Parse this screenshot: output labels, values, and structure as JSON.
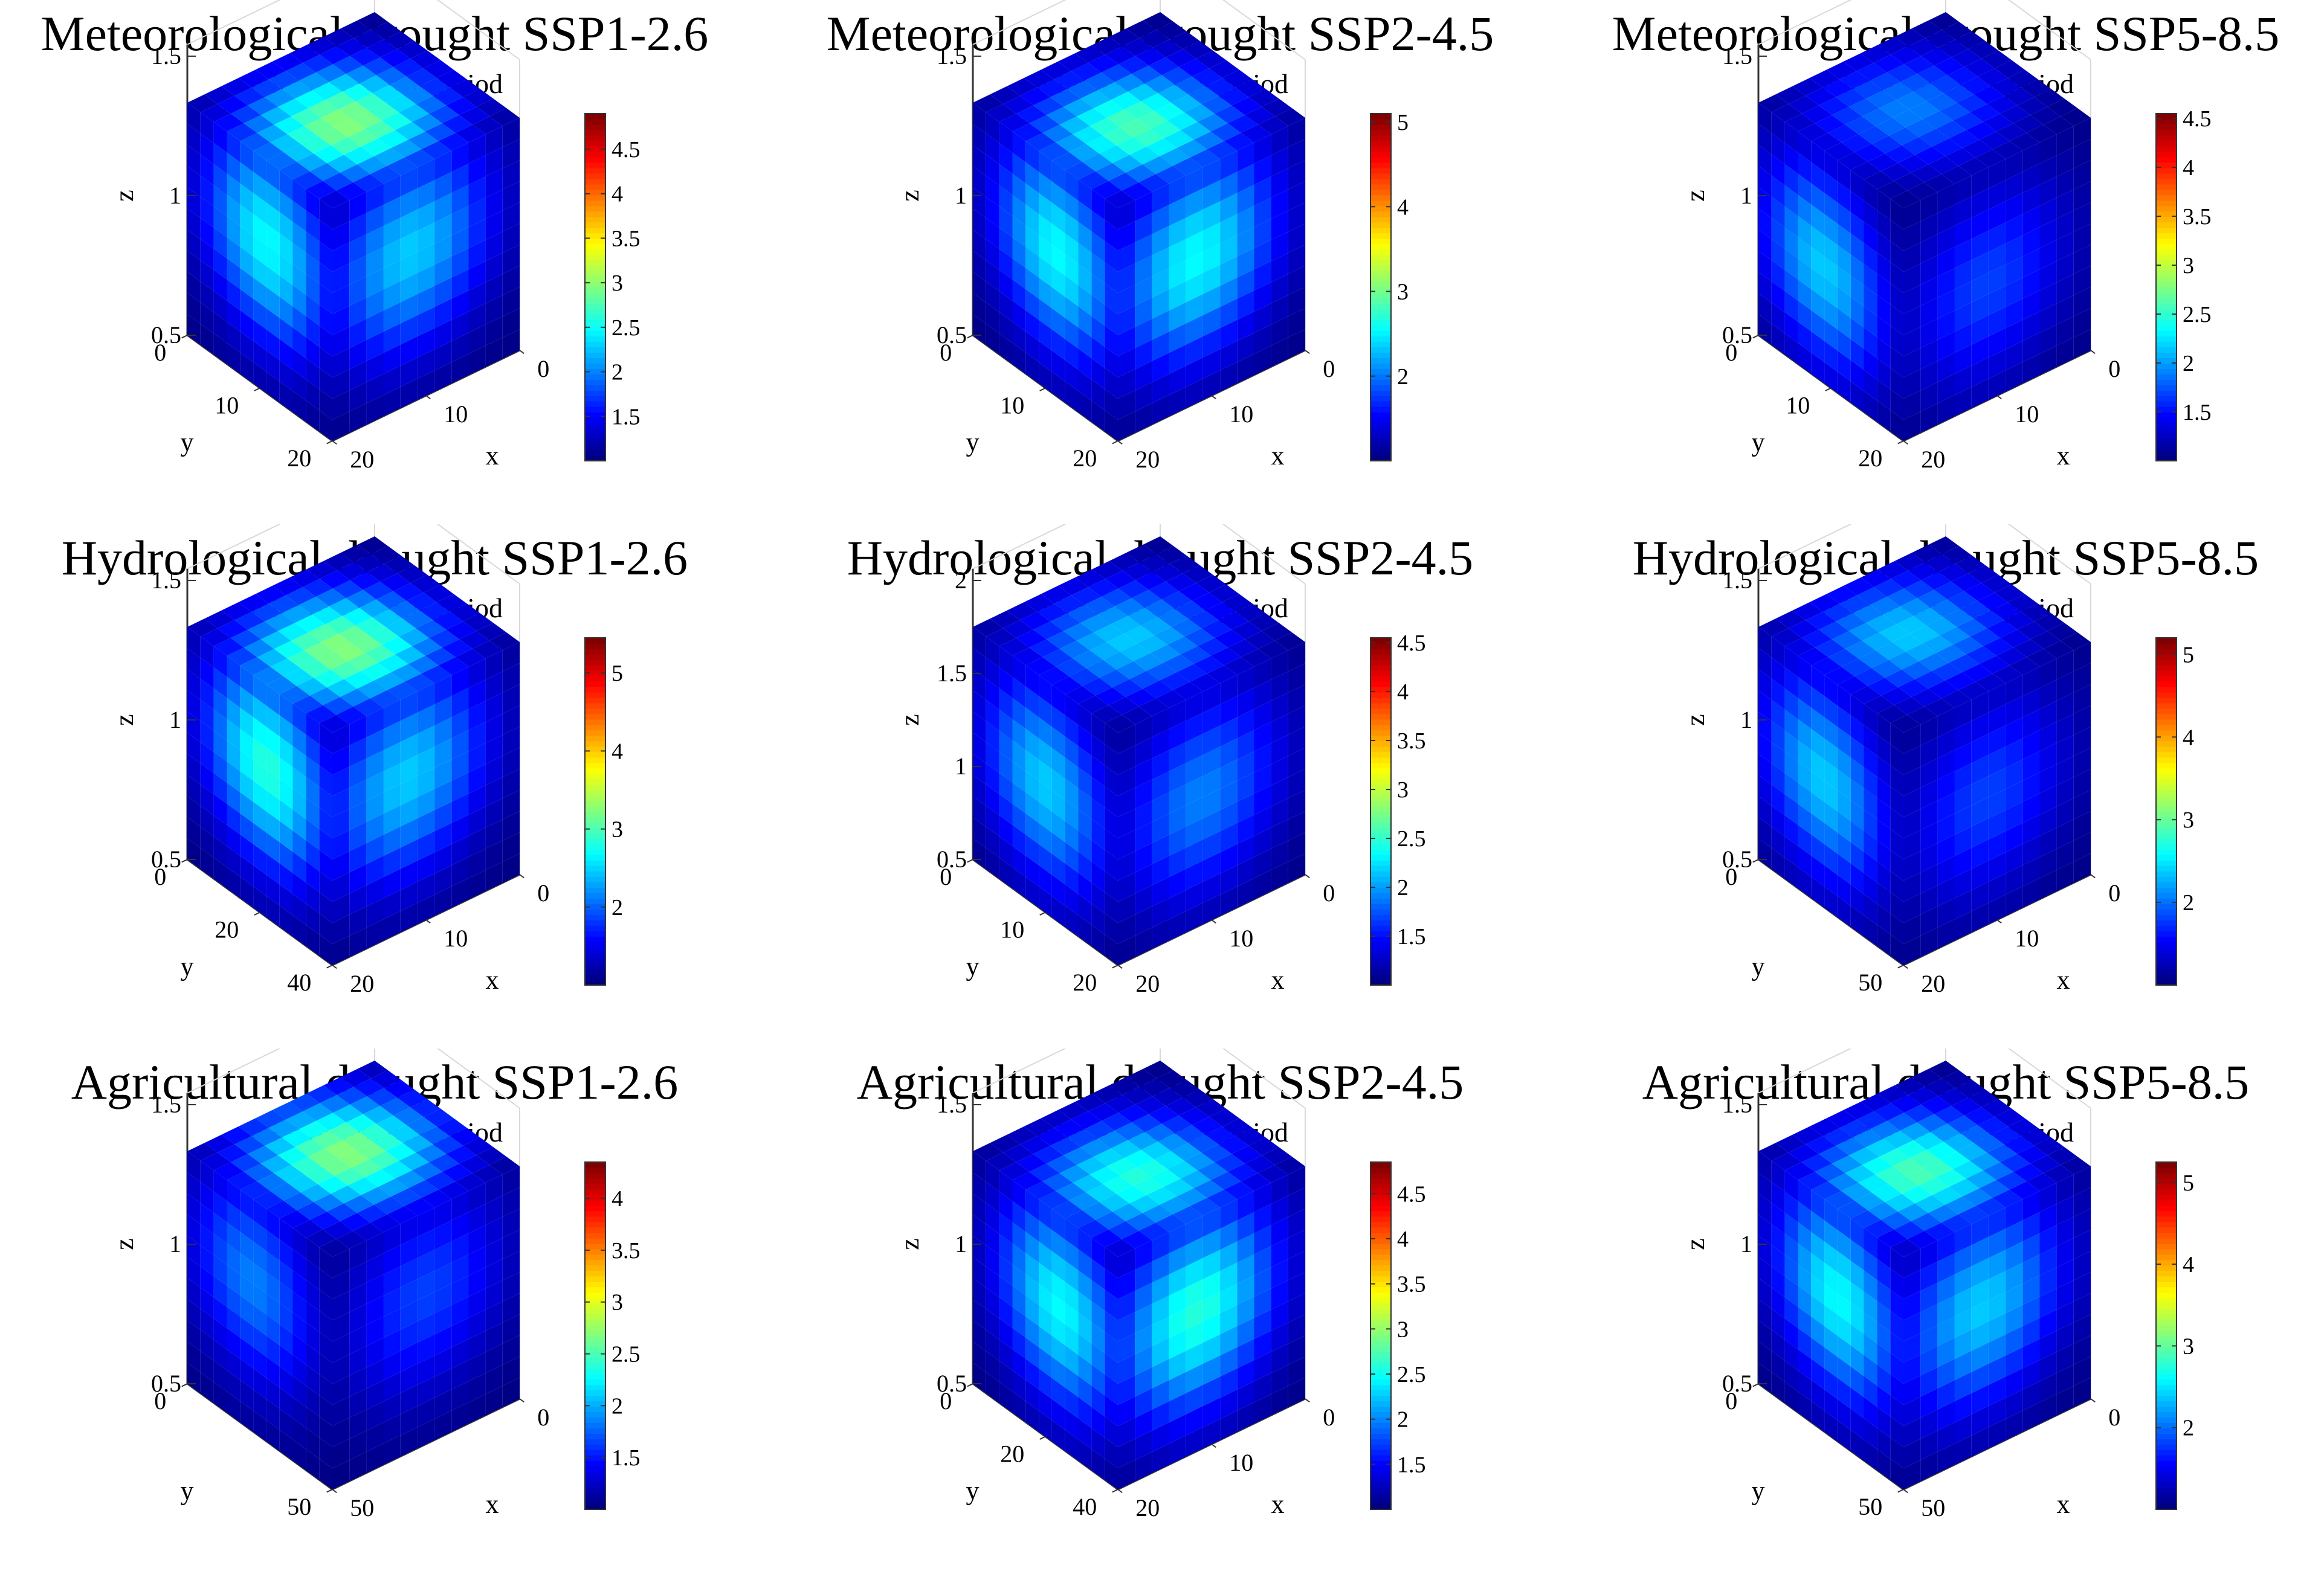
{
  "figure": {
    "subtitle": "Joint recurrence period"
  },
  "colors": {
    "axis": "#333333",
    "grid": "#d9d9d9",
    "text": "#000000",
    "background": "#ffffff"
  },
  "chart_data": [
    {
      "type": "volumetric-slice",
      "title": "Meteorological drought SSP1-2.6",
      "subtitle": "Joint recurrence period",
      "xlabel": "x",
      "ylabel": "y",
      "zlabel": "z",
      "x_ticks": [
        "0",
        "10",
        "20"
      ],
      "y_ticks": [
        "0",
        "10",
        "20"
      ],
      "z_ticks": [
        "0.5",
        "1",
        "1.5"
      ],
      "colorbar": {
        "min": 1.0,
        "max": 4.9,
        "ticks": [
          "1.5",
          "2",
          "2.5",
          "3",
          "3.5",
          "4",
          "4.5"
        ]
      },
      "peak": {
        "x": 0.42,
        "y": 0.45,
        "z": 0.65,
        "value": 4.9
      }
    },
    {
      "type": "volumetric-slice",
      "title": "Meteorological drought SSP2-4.5",
      "subtitle": "Joint recurrence period",
      "xlabel": "x",
      "ylabel": "y",
      "zlabel": "z",
      "x_ticks": [
        "0",
        "10",
        "20"
      ],
      "y_ticks": [
        "0",
        "10",
        "20"
      ],
      "z_ticks": [
        "0.5",
        "1",
        "1.5"
      ],
      "colorbar": {
        "min": 1.0,
        "max": 5.1,
        "ticks": [
          "2",
          "3",
          "4",
          "5"
        ]
      },
      "peak": {
        "x": 0.42,
        "y": 0.42,
        "z": 0.62,
        "value": 5.1
      }
    },
    {
      "type": "volumetric-slice",
      "title": "Meteorological drought SSP5-8.5",
      "subtitle": "Joint recurrence period",
      "xlabel": "x",
      "ylabel": "y",
      "zlabel": "z",
      "x_ticks": [
        "0",
        "10",
        "20"
      ],
      "y_ticks": [
        "0",
        "10",
        "20"
      ],
      "z_ticks": [
        "0.5",
        "1",
        "1.5"
      ],
      "colorbar": {
        "min": 1.0,
        "max": 4.55,
        "ticks": [
          "1.5",
          "2",
          "2.5",
          "3",
          "3.5",
          "4",
          "4.5"
        ]
      },
      "peak": {
        "x": 0.45,
        "y": 0.55,
        "z": 0.5,
        "value": 4.55
      }
    },
    {
      "type": "volumetric-slice",
      "title": "Hydrological drought SSP1-2.6",
      "subtitle": "Joint recurrence period",
      "xlabel": "x",
      "ylabel": "y",
      "zlabel": "z",
      "x_ticks": [
        "0",
        "10",
        "20"
      ],
      "y_ticks": [
        "0",
        "20",
        "40"
      ],
      "z_ticks": [
        "0.5",
        "1",
        "1.5"
      ],
      "colorbar": {
        "min": 1.0,
        "max": 5.45,
        "ticks": [
          "2",
          "3",
          "4",
          "5"
        ]
      },
      "peak": {
        "x": 0.4,
        "y": 0.45,
        "z": 0.65,
        "value": 5.45
      }
    },
    {
      "type": "volumetric-slice",
      "title": "Hydrological drought SSP2-4.5",
      "subtitle": "Joint recurrence period",
      "xlabel": "x",
      "ylabel": "y",
      "zlabel": "z",
      "x_ticks": [
        "0",
        "10",
        "20"
      ],
      "y_ticks": [
        "0",
        "10",
        "20"
      ],
      "z_ticks": [
        "0.5",
        "1",
        "1.5",
        "2"
      ],
      "colorbar": {
        "min": 1.0,
        "max": 4.55,
        "ticks": [
          "1.5",
          "2",
          "2.5",
          "3",
          "3.5",
          "4",
          "4.5"
        ]
      },
      "peak": {
        "x": 0.45,
        "y": 0.5,
        "z": 0.55,
        "value": 4.55
      }
    },
    {
      "type": "volumetric-slice",
      "title": "Hydrological drought SSP5-8.5",
      "subtitle": "Joint recurrence period",
      "xlabel": "x",
      "ylabel": "y",
      "zlabel": "z",
      "x_ticks": [
        "0",
        "10",
        "20"
      ],
      "y_ticks": [
        "0",
        "50"
      ],
      "z_ticks": [
        "0.5",
        "1",
        "1.5"
      ],
      "colorbar": {
        "min": 1.0,
        "max": 5.2,
        "ticks": [
          "2",
          "3",
          "4",
          "5"
        ]
      },
      "peak": {
        "x": 0.45,
        "y": 0.55,
        "z": 0.55,
        "value": 5.2
      }
    },
    {
      "type": "volumetric-slice",
      "title": "Agricultural drought SSP1-2.6",
      "subtitle": "Joint recurrence period",
      "xlabel": "x",
      "ylabel": "y",
      "zlabel": "z",
      "x_ticks": [
        "0",
        "50"
      ],
      "y_ticks": [
        "0",
        "50"
      ],
      "z_ticks": [
        "0.5",
        "1",
        "1.5"
      ],
      "colorbar": {
        "min": 1.0,
        "max": 4.35,
        "ticks": [
          "1.5",
          "2",
          "2.5",
          "3",
          "3.5",
          "4"
        ]
      },
      "peak": {
        "x": 0.5,
        "y": 0.55,
        "z": 0.65,
        "value": 4.35
      }
    },
    {
      "type": "volumetric-slice",
      "title": "Agricultural drought SSP2-4.5",
      "subtitle": "Joint recurrence period",
      "xlabel": "x",
      "ylabel": "y",
      "zlabel": "z",
      "x_ticks": [
        "0",
        "10",
        "20"
      ],
      "y_ticks": [
        "0",
        "20",
        "40"
      ],
      "z_ticks": [
        "0.5",
        "1",
        "1.5"
      ],
      "colorbar": {
        "min": 1.0,
        "max": 4.85,
        "ticks": [
          "1.5",
          "2",
          "2.5",
          "3",
          "3.5",
          "4",
          "4.5"
        ]
      },
      "peak": {
        "x": 0.42,
        "y": 0.4,
        "z": 0.6,
        "value": 4.85
      }
    },
    {
      "type": "volumetric-slice",
      "title": "Agricultural drought SSP5-8.5",
      "subtitle": "Joint recurrence period",
      "xlabel": "x",
      "ylabel": "y",
      "zlabel": "z",
      "x_ticks": [
        "0",
        "50"
      ],
      "y_ticks": [
        "0",
        "50"
      ],
      "z_ticks": [
        "0.5",
        "1",
        "1.5"
      ],
      "colorbar": {
        "min": 1.0,
        "max": 5.25,
        "ticks": [
          "2",
          "3",
          "4",
          "5"
        ]
      },
      "peak": {
        "x": 0.42,
        "y": 0.45,
        "z": 0.62,
        "value": 5.25
      }
    }
  ]
}
